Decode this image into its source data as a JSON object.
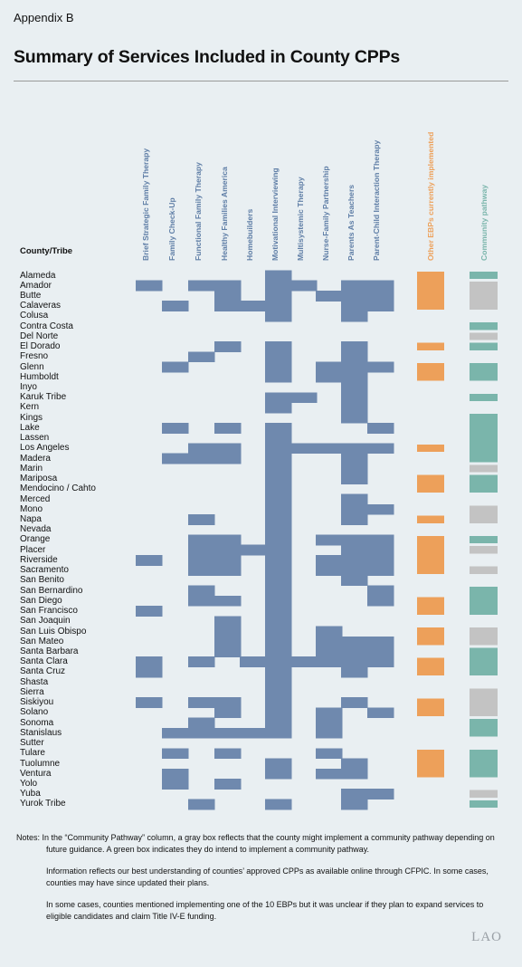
{
  "header": {
    "appendix": "Appendix B",
    "title": "Summary of Services Included in County CPPs",
    "row_header": "County/Tribe"
  },
  "colors": {
    "ebp": "#6f89ae",
    "other": "#eda05a",
    "pathway_green": "#7ab5ab",
    "pathway_gray": "#c3c3c3",
    "background": "#e9eff2"
  },
  "chart_data": {
    "type": "table",
    "columns": [
      "Brief Strategic Family Therapy",
      "Family Check-Up",
      "Functional Family Therapy",
      "Healthy Families America",
      "Homebuilders",
      "Motivational Interviewing",
      "Multisystemic Therapy",
      "Nurse-Family Partnership",
      "Parents As Teachers",
      "Parent-Child Interaction Therapy"
    ],
    "other_column": "Other EBPs currently implemented",
    "pathway_column": "Community pathway",
    "rows": [
      {
        "name": "Alameda",
        "ebps": [
          5
        ],
        "other": 1,
        "pathway": "green"
      },
      {
        "name": "Amador",
        "ebps": [
          0,
          2,
          3,
          5,
          6,
          8,
          9
        ],
        "other": 1,
        "pathway": "gray"
      },
      {
        "name": "Butte",
        "ebps": [
          3,
          5,
          7,
          8,
          9
        ],
        "other": 1,
        "pathway": "gray"
      },
      {
        "name": "Calaveras",
        "ebps": [
          1,
          3,
          4,
          5,
          8,
          9
        ],
        "other": 1,
        "pathway": "gray"
      },
      {
        "name": "Colusa",
        "ebps": [
          5,
          8
        ],
        "other": 0,
        "pathway": "none"
      },
      {
        "name": "Contra Costa",
        "ebps": [],
        "other": 0,
        "pathway": "green"
      },
      {
        "name": "Del Norte",
        "ebps": [],
        "other": 0,
        "pathway": "gray"
      },
      {
        "name": "El Dorado",
        "ebps": [
          3,
          5,
          8
        ],
        "other": 1,
        "pathway": "green"
      },
      {
        "name": "Fresno",
        "ebps": [
          2,
          5,
          8
        ],
        "other": 0,
        "pathway": "none"
      },
      {
        "name": "Glenn",
        "ebps": [
          1,
          5,
          7,
          8,
          9
        ],
        "other": 1,
        "pathway": "green"
      },
      {
        "name": "Humboldt",
        "ebps": [
          5,
          7,
          8
        ],
        "other": 1,
        "pathway": "green"
      },
      {
        "name": "Inyo",
        "ebps": [
          8
        ],
        "other": 0,
        "pathway": "none"
      },
      {
        "name": "Karuk Tribe",
        "ebps": [
          5,
          6,
          8
        ],
        "other": 0,
        "pathway": "green"
      },
      {
        "name": "Kern",
        "ebps": [
          5,
          8
        ],
        "other": 0,
        "pathway": "none"
      },
      {
        "name": "Kings",
        "ebps": [
          8
        ],
        "other": 0,
        "pathway": "green"
      },
      {
        "name": "Lake",
        "ebps": [
          1,
          3,
          5,
          9
        ],
        "other": 0,
        "pathway": "green"
      },
      {
        "name": "Lassen",
        "ebps": [
          5
        ],
        "other": 0,
        "pathway": "green"
      },
      {
        "name": "Los Angeles",
        "ebps": [
          2,
          3,
          5,
          6,
          7,
          8,
          9
        ],
        "other": 1,
        "pathway": "green"
      },
      {
        "name": "Madera",
        "ebps": [
          1,
          2,
          3,
          5,
          8
        ],
        "other": 0,
        "pathway": "green"
      },
      {
        "name": "Marin",
        "ebps": [
          5,
          8
        ],
        "other": 0,
        "pathway": "gray"
      },
      {
        "name": "Mariposa",
        "ebps": [
          5,
          8
        ],
        "other": 1,
        "pathway": "green"
      },
      {
        "name": "Mendocino / Cahto",
        "ebps": [
          5
        ],
        "other": 1,
        "pathway": "green"
      },
      {
        "name": "Merced",
        "ebps": [
          5,
          8
        ],
        "other": 0,
        "pathway": "none"
      },
      {
        "name": "Mono",
        "ebps": [
          5,
          8,
          9
        ],
        "other": 0,
        "pathway": "gray"
      },
      {
        "name": "Napa",
        "ebps": [
          2,
          5,
          8
        ],
        "other": 1,
        "pathway": "gray"
      },
      {
        "name": "Nevada",
        "ebps": [
          5
        ],
        "other": 0,
        "pathway": "none"
      },
      {
        "name": "Orange",
        "ebps": [
          2,
          3,
          5,
          7,
          8,
          9
        ],
        "other": 1,
        "pathway": "green"
      },
      {
        "name": "Placer",
        "ebps": [
          2,
          3,
          4,
          5,
          8,
          9
        ],
        "other": 1,
        "pathway": "gray"
      },
      {
        "name": "Riverside",
        "ebps": [
          0,
          2,
          3,
          5,
          7,
          8,
          9
        ],
        "other": 1,
        "pathway": "none"
      },
      {
        "name": "Sacramento",
        "ebps": [
          2,
          3,
          5,
          7,
          8,
          9
        ],
        "other": 1,
        "pathway": "gray"
      },
      {
        "name": "San Benito",
        "ebps": [
          5,
          8
        ],
        "other": 0,
        "pathway": "none"
      },
      {
        "name": "San Bernardino",
        "ebps": [
          2,
          5,
          9
        ],
        "other": 0,
        "pathway": "green"
      },
      {
        "name": "San Diego",
        "ebps": [
          2,
          3,
          5,
          9
        ],
        "other": 1,
        "pathway": "green"
      },
      {
        "name": "San Francisco",
        "ebps": [
          0,
          5
        ],
        "other": 1,
        "pathway": "green"
      },
      {
        "name": "San Joaquin",
        "ebps": [
          3,
          5
        ],
        "other": 0,
        "pathway": "none"
      },
      {
        "name": "San Luis Obispo",
        "ebps": [
          3,
          5,
          7
        ],
        "other": 1,
        "pathway": "gray"
      },
      {
        "name": "San Mateo",
        "ebps": [
          3,
          5,
          7,
          8,
          9
        ],
        "other": 1,
        "pathway": "gray"
      },
      {
        "name": "Santa Barbara",
        "ebps": [
          3,
          5,
          7,
          8,
          9
        ],
        "other": 0,
        "pathway": "green"
      },
      {
        "name": "Santa Clara",
        "ebps": [
          0,
          2,
          4,
          5,
          6,
          7,
          8,
          9
        ],
        "other": 1,
        "pathway": "green"
      },
      {
        "name": "Santa Cruz",
        "ebps": [
          0,
          5,
          8
        ],
        "other": 1,
        "pathway": "green"
      },
      {
        "name": "Shasta",
        "ebps": [
          5
        ],
        "other": 0,
        "pathway": "none"
      },
      {
        "name": "Sierra",
        "ebps": [
          5
        ],
        "other": 0,
        "pathway": "gray"
      },
      {
        "name": "Siskiyou",
        "ebps": [
          0,
          2,
          3,
          5,
          8
        ],
        "other": 1,
        "pathway": "gray"
      },
      {
        "name": "Solano",
        "ebps": [
          3,
          5,
          7,
          9
        ],
        "other": 1,
        "pathway": "gray"
      },
      {
        "name": "Sonoma",
        "ebps": [
          2,
          5,
          7
        ],
        "other": 0,
        "pathway": "green"
      },
      {
        "name": "Stanislaus",
        "ebps": [
          1,
          2,
          3,
          4,
          5,
          7
        ],
        "other": 0,
        "pathway": "green"
      },
      {
        "name": "Sutter",
        "ebps": [],
        "other": 0,
        "pathway": "none"
      },
      {
        "name": "Tulare",
        "ebps": [
          1,
          3,
          7
        ],
        "other": 1,
        "pathway": "green"
      },
      {
        "name": "Tuolumne",
        "ebps": [
          5,
          8
        ],
        "other": 1,
        "pathway": "green"
      },
      {
        "name": "Ventura",
        "ebps": [
          1,
          5,
          7,
          8
        ],
        "other": 1,
        "pathway": "green"
      },
      {
        "name": "Yolo",
        "ebps": [
          1,
          3
        ],
        "other": 0,
        "pathway": "none"
      },
      {
        "name": "Yuba",
        "ebps": [
          8,
          9
        ],
        "other": 0,
        "pathway": "gray"
      },
      {
        "name": "Yurok Tribe",
        "ebps": [
          2,
          5,
          8
        ],
        "other": 0,
        "pathway": "green"
      }
    ]
  },
  "notes": {
    "n1": "Notes: In the “Community Pathway” column, a gray box reflects that the county might implement a community pathway depending on future guidance. A green box indicates they do intend to implement a community pathway.",
    "n2": "Information reflects our best understanding of counties’ approved CPPs as available online through CFPIC. In some cases, counties may have since updated their plans.",
    "n3": "In some cases, counties mentioned implementing one of the 10 EBPs but it was unclear if they plan to expand services to eligible candidates and claim Title IV-E funding."
  },
  "logo": "LAO"
}
